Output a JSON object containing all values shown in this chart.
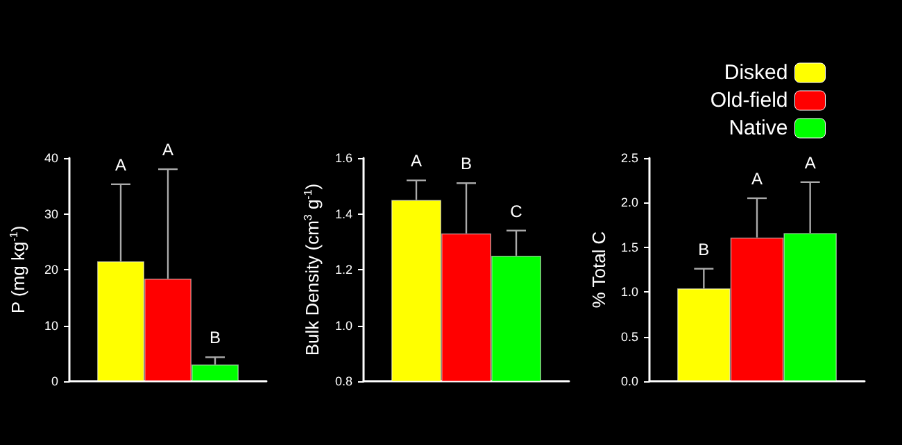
{
  "chart_data": [
    {
      "type": "bar",
      "categories": [
        null
      ],
      "ylabel": "P (mg kg$^{-1}$)",
      "ylim": [
        0,
        40
      ],
      "yticks": [
        0,
        10,
        20,
        30,
        40
      ],
      "grid": false,
      "legend": false,
      "series": [
        {
          "color": "#ffff00",
          "values": [
            21.5
          ],
          "errors": [
            [
              21.5,
              35.3
            ]
          ]
        },
        {
          "color": "#ff0000",
          "values": [
            18.4
          ],
          "errors": [
            [
              18.4,
              38.0
            ]
          ]
        },
        {
          "color": "#00ff00",
          "values": [
            3.0
          ],
          "errors": [
            [
              3.0,
              4.3
            ]
          ]
        }
      ],
      "annotations": [
        "A",
        "A",
        "B"
      ]
    },
    {
      "type": "bar",
      "categories": [
        null
      ],
      "ylabel": "Bulk Density (cm$^{3}$ g$^{-1}$)",
      "ylim": [
        0.8,
        1.6
      ],
      "yticks": [
        0.8,
        {
          "value": 1,
          "label": "1.0"
        },
        1.2,
        1.4,
        1.6
      ],
      "grid": false,
      "legend": false,
      "series": [
        {
          "color": "#ffff00",
          "values": [
            1.45
          ],
          "errors": [
            [
              1.45,
              1.52
            ]
          ]
        },
        {
          "color": "#ff0000",
          "values": [
            1.33
          ],
          "errors": [
            [
              1.33,
              1.51
            ]
          ]
        },
        {
          "color": "#00ff00",
          "values": [
            1.25
          ],
          "errors": [
            [
              1.25,
              1.34
            ]
          ]
        }
      ],
      "annotations": [
        "A",
        "B",
        "C"
      ]
    },
    {
      "type": "bar",
      "categories": [
        null
      ],
      "ylabel": "% Total C",
      "ylim": [
        0,
        2.5
      ],
      "yticks": [
        {
          "value": 0,
          "label": "0.0"
        },
        0.5,
        {
          "value": 1,
          "label": "1.0"
        },
        1.5,
        {
          "value": 2,
          "label": "2.0"
        },
        2.5
      ],
      "grid": false,
      "legend": "top right",
      "series": [
        {
          "name": "Disked",
          "color": "#ffff00",
          "values": [
            1.04
          ],
          "errors": [
            [
              1.04,
              1.26
            ]
          ]
        },
        {
          "name": "Old-field",
          "color": "#ff0000",
          "values": [
            1.61
          ],
          "errors": [
            [
              1.61,
              2.05
            ]
          ]
        },
        {
          "name": "Native",
          "color": "#00ff00",
          "values": [
            1.66
          ],
          "errors": [
            [
              1.66,
              2.23
            ]
          ]
        }
      ],
      "annotations": [
        "B",
        "A",
        "A"
      ]
    }
  ]
}
